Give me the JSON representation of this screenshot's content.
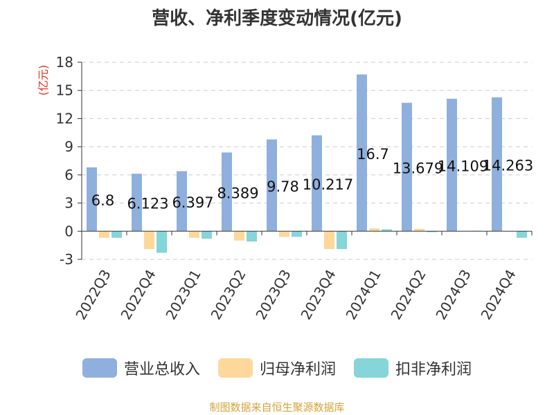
{
  "chart_data": {
    "type": "bar",
    "title": "营收、净利季度变动情况(亿元)",
    "ylabel": "(亿元)",
    "xlabel": "",
    "ylim": [
      -3,
      18
    ],
    "yticks": [
      -3,
      0,
      3,
      6,
      9,
      12,
      15,
      18
    ],
    "categories": [
      "2022Q3",
      "2022Q4",
      "2023Q1",
      "2023Q2",
      "2023Q3",
      "2023Q4",
      "2024Q1",
      "2024Q2",
      "2024Q3",
      "2024Q4"
    ],
    "series": [
      {
        "name": "营业总收入",
        "color": "#8fb0dd",
        "values": [
          6.8,
          6.123,
          6.397,
          8.389,
          9.78,
          10.217,
          16.7,
          13.679,
          14.109,
          14.263
        ],
        "labels": [
          "6.8",
          "6.123",
          "6.397",
          "8.389",
          "9.78",
          "10.217",
          "16.7",
          "13.679",
          "14.109",
          "14.263"
        ]
      },
      {
        "name": "归母净利润",
        "color": "#fdd89a",
        "values": [
          -0.7,
          -1.9,
          -0.7,
          -1.0,
          -0.6,
          -1.9,
          0.3,
          0.25,
          0.05,
          0.0
        ]
      },
      {
        "name": "扣非净利润",
        "color": "#85d5d9",
        "values": [
          -0.7,
          -2.3,
          -0.8,
          -1.1,
          -0.6,
          -1.9,
          0.2,
          -0.1,
          0.05,
          -0.7
        ]
      }
    ],
    "grid": true,
    "legend_position": "bottom"
  },
  "source_note": "制图数据来自恒生聚源数据库",
  "colors": {
    "axis": "#333333",
    "grid": "#cccccc",
    "ylabel": "#e0301e",
    "source": "#d4a33a"
  }
}
